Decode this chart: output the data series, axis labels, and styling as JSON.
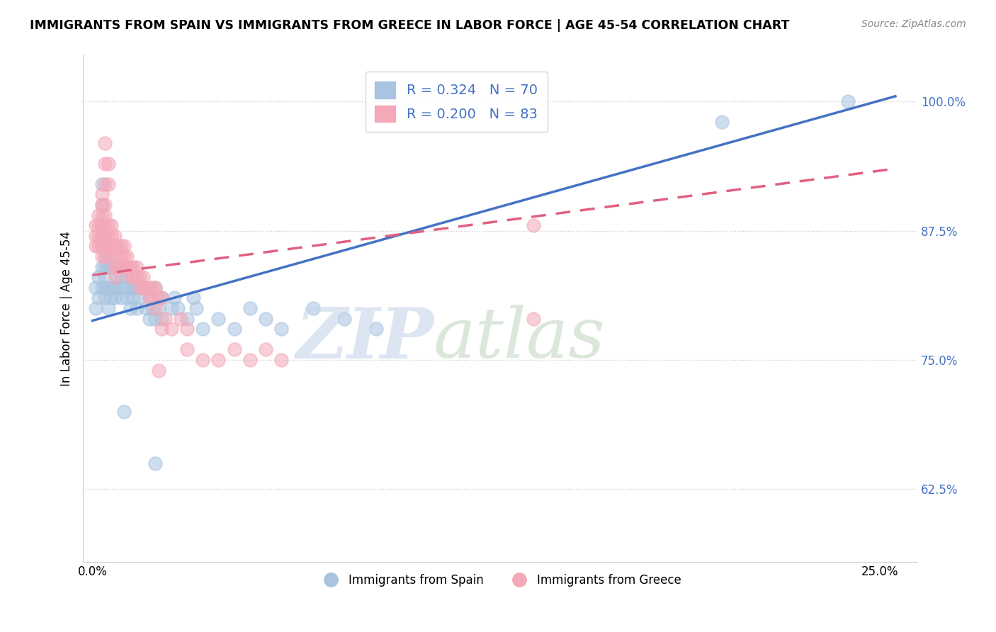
{
  "title": "IMMIGRANTS FROM SPAIN VS IMMIGRANTS FROM GREECE IN LABOR FORCE | AGE 45-54 CORRELATION CHART",
  "source": "Source: ZipAtlas.com",
  "ylabel": "In Labor Force | Age 45-54",
  "xlim": [
    -0.003,
    0.262
  ],
  "ylim": [
    0.555,
    1.045
  ],
  "spain_color": "#a8c4e0",
  "greece_color": "#f4a8b8",
  "spain_line_color": "#4472c4",
  "greece_line_color": "#e06080",
  "spain_R": 0.324,
  "spain_N": 70,
  "greece_R": 0.2,
  "greece_N": 83,
  "legend_R_color": "#4472c4",
  "y_ticks": [
    0.625,
    0.75,
    0.875,
    1.0
  ],
  "y_tick_labels": [
    "62.5%",
    "75.0%",
    "87.5%",
    "100.0%"
  ],
  "x_ticks": [
    0.0,
    0.05,
    0.1,
    0.15,
    0.2,
    0.25
  ],
  "x_tick_labels": [
    "0.0%",
    "",
    "",
    "",
    "",
    "25.0%"
  ],
  "spain_line_x0": 0.0,
  "spain_line_y0": 0.788,
  "spain_line_x1": 0.255,
  "spain_line_y1": 1.005,
  "greece_line_x0": 0.0,
  "greece_line_y0": 0.832,
  "greece_line_x1": 0.255,
  "greece_line_y1": 0.935,
  "spain_scatter": [
    [
      0.001,
      0.82
    ],
    [
      0.001,
      0.8
    ],
    [
      0.002,
      0.83
    ],
    [
      0.002,
      0.81
    ],
    [
      0.003,
      0.82
    ],
    [
      0.003,
      0.84
    ],
    [
      0.003,
      0.86
    ],
    [
      0.003,
      0.88
    ],
    [
      0.003,
      0.9
    ],
    [
      0.003,
      0.92
    ],
    [
      0.004,
      0.82
    ],
    [
      0.004,
      0.84
    ],
    [
      0.004,
      0.81
    ],
    [
      0.004,
      0.83
    ],
    [
      0.004,
      0.85
    ],
    [
      0.005,
      0.82
    ],
    [
      0.005,
      0.84
    ],
    [
      0.005,
      0.8
    ],
    [
      0.006,
      0.82
    ],
    [
      0.006,
      0.84
    ],
    [
      0.006,
      0.81
    ],
    [
      0.007,
      0.82
    ],
    [
      0.007,
      0.84
    ],
    [
      0.007,
      0.81
    ],
    [
      0.008,
      0.83
    ],
    [
      0.008,
      0.82
    ],
    [
      0.009,
      0.81
    ],
    [
      0.009,
      0.83
    ],
    [
      0.01,
      0.82
    ],
    [
      0.01,
      0.84
    ],
    [
      0.011,
      0.81
    ],
    [
      0.011,
      0.83
    ],
    [
      0.012,
      0.82
    ],
    [
      0.012,
      0.8
    ],
    [
      0.013,
      0.81
    ],
    [
      0.013,
      0.82
    ],
    [
      0.014,
      0.8
    ],
    [
      0.014,
      0.82
    ],
    [
      0.015,
      0.81
    ],
    [
      0.016,
      0.82
    ],
    [
      0.017,
      0.8
    ],
    [
      0.018,
      0.79
    ],
    [
      0.018,
      0.81
    ],
    [
      0.019,
      0.8
    ],
    [
      0.02,
      0.82
    ],
    [
      0.02,
      0.79
    ],
    [
      0.021,
      0.8
    ],
    [
      0.022,
      0.81
    ],
    [
      0.022,
      0.79
    ],
    [
      0.025,
      0.8
    ],
    [
      0.026,
      0.81
    ],
    [
      0.027,
      0.8
    ],
    [
      0.03,
      0.79
    ],
    [
      0.032,
      0.81
    ],
    [
      0.033,
      0.8
    ],
    [
      0.035,
      0.78
    ],
    [
      0.04,
      0.79
    ],
    [
      0.045,
      0.78
    ],
    [
      0.05,
      0.8
    ],
    [
      0.055,
      0.79
    ],
    [
      0.06,
      0.78
    ],
    [
      0.07,
      0.8
    ],
    [
      0.08,
      0.79
    ],
    [
      0.09,
      0.78
    ],
    [
      0.003,
      0.87
    ],
    [
      0.004,
      0.86
    ],
    [
      0.005,
      0.85
    ],
    [
      0.01,
      0.7
    ],
    [
      0.02,
      0.65
    ],
    [
      0.2,
      0.98
    ],
    [
      0.24,
      1.0
    ]
  ],
  "greece_scatter": [
    [
      0.001,
      0.87
    ],
    [
      0.001,
      0.86
    ],
    [
      0.001,
      0.88
    ],
    [
      0.002,
      0.87
    ],
    [
      0.002,
      0.88
    ],
    [
      0.002,
      0.89
    ],
    [
      0.002,
      0.86
    ],
    [
      0.003,
      0.87
    ],
    [
      0.003,
      0.88
    ],
    [
      0.003,
      0.9
    ],
    [
      0.003,
      0.86
    ],
    [
      0.003,
      0.89
    ],
    [
      0.003,
      0.85
    ],
    [
      0.003,
      0.91
    ],
    [
      0.004,
      0.86
    ],
    [
      0.004,
      0.88
    ],
    [
      0.004,
      0.87
    ],
    [
      0.004,
      0.89
    ],
    [
      0.004,
      0.86
    ],
    [
      0.004,
      0.9
    ],
    [
      0.004,
      0.85
    ],
    [
      0.004,
      0.92
    ],
    [
      0.004,
      0.94
    ],
    [
      0.004,
      0.96
    ],
    [
      0.005,
      0.86
    ],
    [
      0.005,
      0.88
    ],
    [
      0.005,
      0.87
    ],
    [
      0.005,
      0.94
    ],
    [
      0.005,
      0.92
    ],
    [
      0.006,
      0.86
    ],
    [
      0.006,
      0.87
    ],
    [
      0.006,
      0.88
    ],
    [
      0.006,
      0.85
    ],
    [
      0.007,
      0.86
    ],
    [
      0.007,
      0.87
    ],
    [
      0.007,
      0.84
    ],
    [
      0.007,
      0.83
    ],
    [
      0.008,
      0.86
    ],
    [
      0.008,
      0.85
    ],
    [
      0.008,
      0.84
    ],
    [
      0.009,
      0.85
    ],
    [
      0.009,
      0.84
    ],
    [
      0.009,
      0.86
    ],
    [
      0.01,
      0.84
    ],
    [
      0.01,
      0.85
    ],
    [
      0.01,
      0.86
    ],
    [
      0.011,
      0.84
    ],
    [
      0.011,
      0.85
    ],
    [
      0.012,
      0.84
    ],
    [
      0.012,
      0.83
    ],
    [
      0.013,
      0.84
    ],
    [
      0.013,
      0.83
    ],
    [
      0.014,
      0.84
    ],
    [
      0.014,
      0.83
    ],
    [
      0.015,
      0.83
    ],
    [
      0.015,
      0.82
    ],
    [
      0.016,
      0.83
    ],
    [
      0.016,
      0.82
    ],
    [
      0.017,
      0.82
    ],
    [
      0.018,
      0.82
    ],
    [
      0.018,
      0.81
    ],
    [
      0.019,
      0.82
    ],
    [
      0.019,
      0.81
    ],
    [
      0.02,
      0.82
    ],
    [
      0.02,
      0.8
    ],
    [
      0.021,
      0.81
    ],
    [
      0.021,
      0.74
    ],
    [
      0.022,
      0.81
    ],
    [
      0.022,
      0.78
    ],
    [
      0.023,
      0.79
    ],
    [
      0.025,
      0.78
    ],
    [
      0.028,
      0.79
    ],
    [
      0.03,
      0.78
    ],
    [
      0.03,
      0.76
    ],
    [
      0.035,
      0.75
    ],
    [
      0.04,
      0.75
    ],
    [
      0.045,
      0.76
    ],
    [
      0.05,
      0.75
    ],
    [
      0.055,
      0.76
    ],
    [
      0.06,
      0.75
    ],
    [
      0.14,
      0.88
    ],
    [
      0.14,
      0.79
    ]
  ]
}
